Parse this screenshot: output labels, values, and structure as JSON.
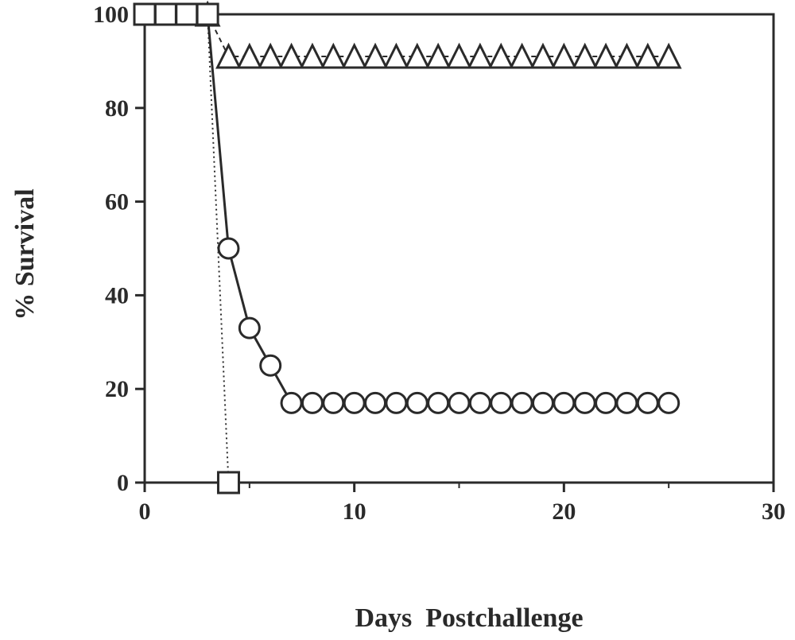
{
  "chart_data": {
    "type": "line",
    "title": "",
    "xlabel": "Days  Postchallenge",
    "ylabel": "% Survival",
    "xlim": [
      0,
      30
    ],
    "ylim": [
      0,
      100
    ],
    "xticks": [
      0,
      10,
      20,
      30
    ],
    "yticks": [
      0,
      20,
      40,
      60,
      80,
      100
    ],
    "grid": false,
    "legend": "none",
    "series": [
      {
        "marker": "triangle",
        "line_style": "dashed",
        "color": "#2a2a2a",
        "x": [
          3,
          4,
          5,
          6,
          7,
          8,
          9,
          10,
          11,
          12,
          13,
          14,
          15,
          16,
          17,
          18,
          19,
          20,
          21,
          22,
          23,
          24,
          25
        ],
        "y": [
          100,
          91,
          91,
          91,
          91,
          91,
          91,
          91,
          91,
          91,
          91,
          91,
          91,
          91,
          91,
          91,
          91,
          91,
          91,
          91,
          91,
          91,
          91
        ]
      },
      {
        "marker": "circle",
        "line_style": "solid",
        "color": "#2a2a2a",
        "x": [
          0,
          1,
          2,
          3,
          4,
          5,
          6,
          7,
          8,
          9,
          10,
          11,
          12,
          13,
          14,
          15,
          16,
          17,
          18,
          19,
          20,
          21,
          22,
          23,
          24,
          25
        ],
        "y": [
          100,
          100,
          100,
          100,
          50,
          33,
          25,
          17,
          17,
          17,
          17,
          17,
          17,
          17,
          17,
          17,
          17,
          17,
          17,
          17,
          17,
          17,
          17,
          17,
          17,
          17
        ]
      },
      {
        "marker": "square",
        "line_style": "dotted",
        "color": "#2a2a2a",
        "x": [
          0,
          1,
          2,
          3,
          4
        ],
        "y": [
          100,
          100,
          100,
          100,
          0
        ]
      }
    ]
  }
}
